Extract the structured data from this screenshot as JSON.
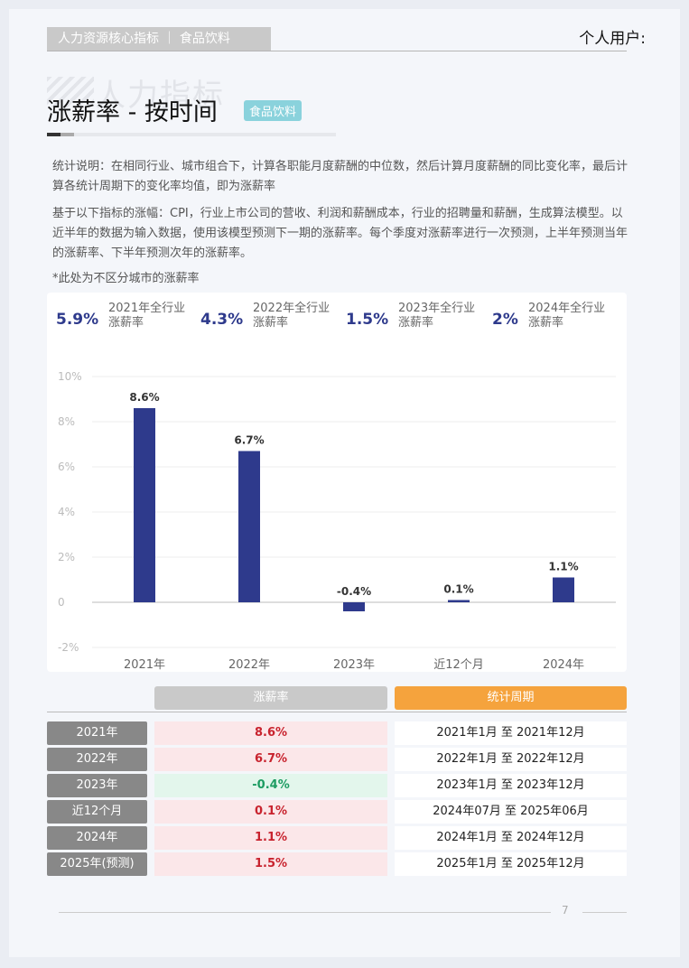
{
  "header": {
    "tab": "人力资源核心指标 ｜ 食品饮料",
    "user": "个人用户:"
  },
  "title": {
    "watermark": "人力指标",
    "main": "涨薪率 - 按时间",
    "tag": "食品饮料"
  },
  "description": {
    "p1": "统计说明：在相同行业、城市组合下，计算各职能月度薪酬的中位数，然后计算月度薪酬的同比变化率，最后计算各统计周期下的变化率均值，即为涨薪率",
    "p2": "基于以下指标的涨幅：CPI，行业上市公司的营收、利润和薪酬成本，行业的招聘量和薪酬，生成算法模型。以近半年的数据为输入数据，使用该模型预测下一期的涨薪率。每个季度对涨薪率进行一次预测，上半年预测当年的涨薪率、下半年预测次年的涨薪率。",
    "p3": "*此处为不区分城市的涨薪率"
  },
  "summary": [
    {
      "value": "5.9%",
      "label1": "2021年全行业",
      "label2": "涨薪率"
    },
    {
      "value": "4.3%",
      "label1": "2022年全行业",
      "label2": "涨薪率"
    },
    {
      "value": "1.5%",
      "label1": "2023年全行业",
      "label2": "涨薪率"
    },
    {
      "value": "2%",
      "label1": "2024年全行业",
      "label2": "涨薪率"
    }
  ],
  "chart_data": {
    "type": "bar",
    "categories": [
      "2021年",
      "2022年",
      "2023年",
      "近12个月",
      "2024年"
    ],
    "values": [
      8.6,
      6.7,
      -0.4,
      0.1,
      1.1
    ],
    "data_labels": [
      "8.6%",
      "6.7%",
      "-0.4%",
      "0.1%",
      "1.1%"
    ],
    "yticks": [
      "10%",
      "8%",
      "6%",
      "4%",
      "2%",
      "0",
      "-2%"
    ],
    "ytick_values": [
      10,
      8,
      6,
      4,
      2,
      0,
      -2
    ],
    "ylim": [
      -2,
      10
    ],
    "grid": true,
    "bar_color": "#2e3a8c"
  },
  "table": {
    "head_rate": "涨薪率",
    "head_period": "统计周期",
    "head_rate_color": "#c9c9c9",
    "head_period_color": "#f5a33d",
    "rows": [
      {
        "label": "2021年",
        "rate": "8.6%",
        "period": "2021年1月 至 2021年12月",
        "sign": "pos"
      },
      {
        "label": "2022年",
        "rate": "6.7%",
        "period": "2022年1月 至 2022年12月",
        "sign": "pos"
      },
      {
        "label": "2023年",
        "rate": "-0.4%",
        "period": "2023年1月 至 2023年12月",
        "sign": "neg"
      },
      {
        "label": "近12个月",
        "rate": "0.1%",
        "period": "2024年07月 至 2025年06月",
        "sign": "pos"
      },
      {
        "label": "2024年",
        "rate": "1.1%",
        "period": "2024年1月 至 2024年12月",
        "sign": "pos"
      },
      {
        "label": "2025年(预测)",
        "rate": "1.5%",
        "period": "2025年1月 至 2025年12月",
        "sign": "pos"
      }
    ]
  },
  "footer": {
    "page": "7"
  }
}
